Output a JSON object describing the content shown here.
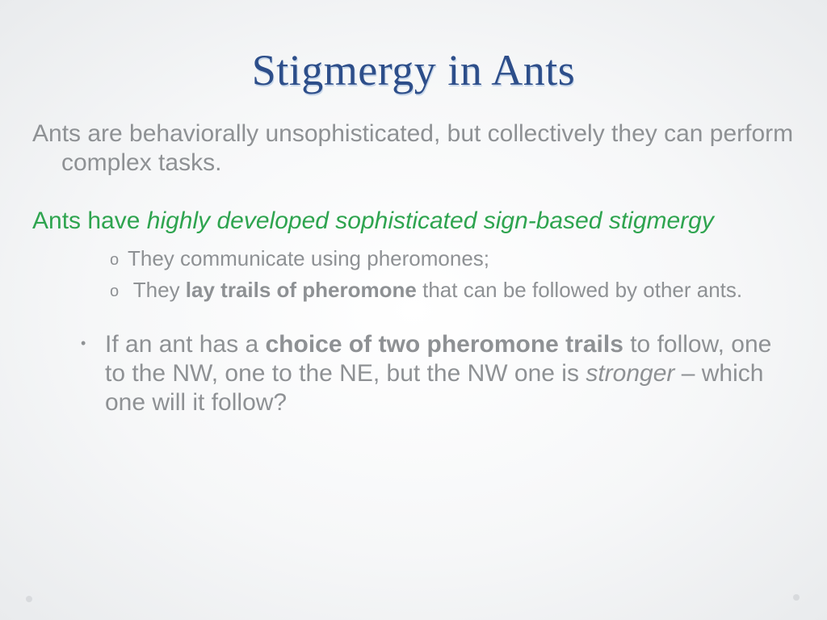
{
  "colors": {
    "title_color": "#2d4e8a",
    "title_shadow": "#c9d8ea",
    "body_text": "#8e9194",
    "accent_green": "#2ea44f",
    "bg_center": "#ffffff",
    "bg_edge": "#e9ebed",
    "decor_dot": "#d8dadd"
  },
  "typography": {
    "title_fontsize_pt": 40,
    "body_fontsize_pt": 22,
    "sub_fontsize_pt": 19,
    "title_font": "Book Antiqua",
    "body_font": "Century Gothic"
  },
  "slide": {
    "title": "Stigmergy in Ants",
    "intro": "Ants are behaviorally unsophisticated, but collectively they can perform complex tasks.",
    "green_line_plain": "Ants have ",
    "green_line_italic": "highly developed sophisticated sign-based stigmergy",
    "sub_bullets": {
      "b1": "They communicate using pheromones;",
      "b2_pre": "They ",
      "b2_bold": "lay trails of pheromone",
      "b2_post": " that can be followed by other ants."
    },
    "q_bullet": {
      "pre": "If an ant has a ",
      "bold": "choice of two pheromone trails",
      "mid": " to follow, one to the NW, one to the NE, but the NW one is ",
      "italic": "stronger",
      "post": " – which one will it follow?"
    }
  }
}
